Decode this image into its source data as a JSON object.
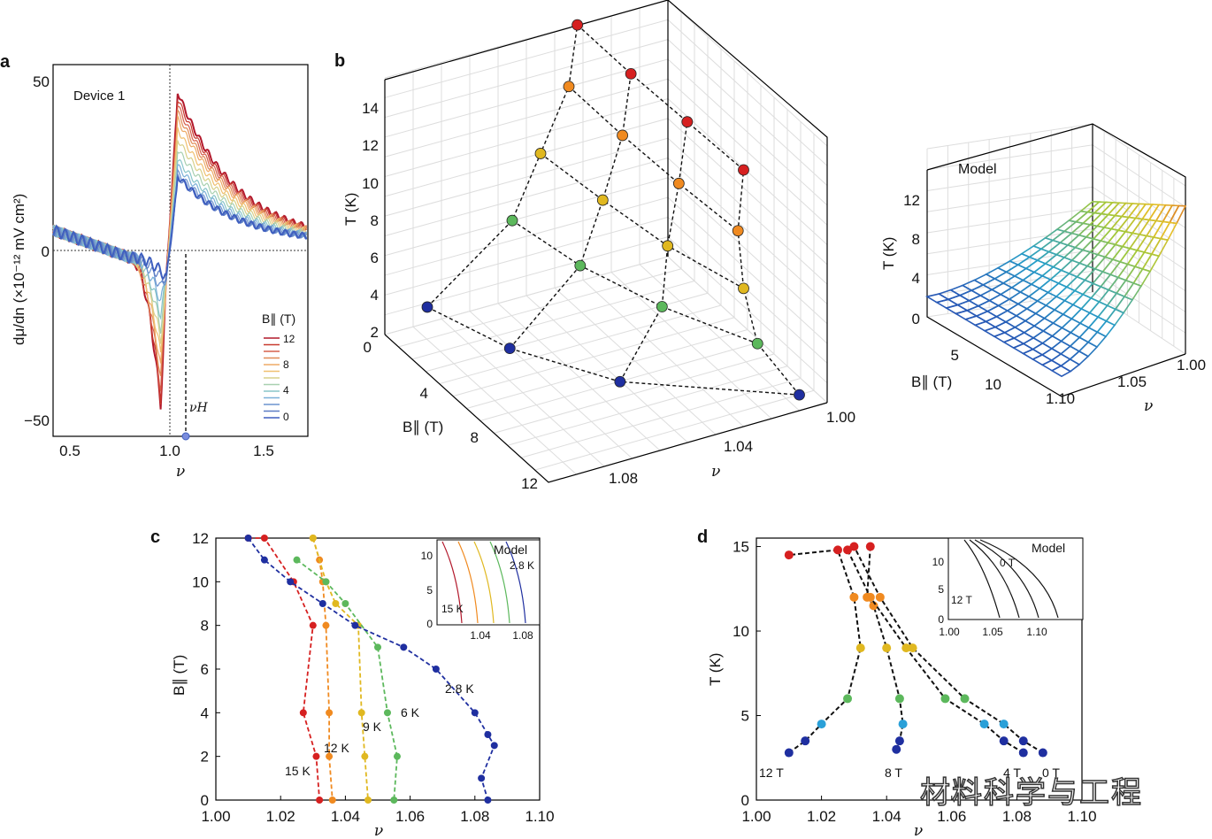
{
  "panels": {
    "a": "a",
    "b": "b",
    "c": "c",
    "d": "d"
  },
  "chart_data": [
    {
      "id": "a",
      "type": "line",
      "annotation": "Device 1",
      "ylabel": "dμ/dn (×10⁻¹² mV cm²)",
      "xlabel": "ν",
      "xlim": [
        0.4,
        1.75
      ],
      "ylim": [
        -55,
        55
      ],
      "xticks": [
        "0.5",
        "1.0",
        "1.5"
      ],
      "yticks": [
        "50",
        "0",
        "−50"
      ],
      "legend_title": "B∥ (T)",
      "legend_entries": [
        "12",
        "8",
        "4",
        "0"
      ],
      "marker_label": "νH",
      "marker_nu": 1.09,
      "series": [
        {
          "field": 12,
          "min": -46,
          "max": 45,
          "color": "#b2182b"
        },
        {
          "field": 11,
          "min": -44,
          "max": 43,
          "color": "#c83a2e"
        },
        {
          "field": 10,
          "min": -41,
          "max": 41,
          "color": "#d6604d"
        },
        {
          "field": 9,
          "min": -38,
          "max": 39,
          "color": "#e08a55"
        },
        {
          "field": 8,
          "min": -35,
          "max": 37,
          "color": "#eeaa66"
        },
        {
          "field": 7,
          "min": -31,
          "max": 34,
          "color": "#f0c070"
        },
        {
          "field": 6,
          "min": -27,
          "max": 31,
          "color": "#d9d08a"
        },
        {
          "field": 5,
          "min": -23,
          "max": 28,
          "color": "#a8d0b0"
        },
        {
          "field": 4,
          "min": -19,
          "max": 25,
          "color": "#88c5c9"
        },
        {
          "field": 3,
          "min": -15,
          "max": 23,
          "color": "#7bb0d8"
        },
        {
          "field": 2,
          "min": -11,
          "max": 21,
          "color": "#6c93cf"
        },
        {
          "field": 1,
          "min": -8,
          "max": 20,
          "color": "#5b7bc4"
        },
        {
          "field": 0,
          "min": -6,
          "max": 20,
          "color": "#3f5fbf"
        }
      ]
    },
    {
      "id": "b",
      "type": "scatter",
      "xlabel": "ν",
      "ylabel": "B∥ (T)",
      "zlabel": "T (K)",
      "xticks": [
        "1.00",
        "1.04",
        "1.08"
      ],
      "yticks": [
        "0",
        "4",
        "8",
        "12"
      ],
      "zticks": [
        "2",
        "4",
        "6",
        "8",
        "10",
        "12",
        "14"
      ],
      "points": [
        {
          "B": 0,
          "nu": 1.085,
          "T": 2.8,
          "color": "#1f2fa0"
        },
        {
          "B": 4,
          "nu": 1.075,
          "T": 2.8,
          "color": "#1f2fa0"
        },
        {
          "B": 8,
          "nu": 1.055,
          "T": 2.8,
          "color": "#1f2fa0"
        },
        {
          "B": 12,
          "nu": 1.01,
          "T": 2.8,
          "color": "#1f2fa0"
        },
        {
          "B": 0,
          "nu": 1.055,
          "T": 6,
          "color": "#5cb85c"
        },
        {
          "B": 4,
          "nu": 1.05,
          "T": 6,
          "color": "#5cb85c"
        },
        {
          "B": 8,
          "nu": 1.04,
          "T": 6,
          "color": "#5cb85c"
        },
        {
          "B": 12,
          "nu": 1.025,
          "T": 6,
          "color": "#5cb85c"
        },
        {
          "B": 0,
          "nu": 1.045,
          "T": 9,
          "color": "#e0b820"
        },
        {
          "B": 4,
          "nu": 1.042,
          "T": 9,
          "color": "#e0b820"
        },
        {
          "B": 8,
          "nu": 1.038,
          "T": 9,
          "color": "#e0b820"
        },
        {
          "B": 12,
          "nu": 1.03,
          "T": 9,
          "color": "#e0b820"
        },
        {
          "B": 0,
          "nu": 1.035,
          "T": 12,
          "color": "#f08a20"
        },
        {
          "B": 4,
          "nu": 1.035,
          "T": 12,
          "color": "#f08a20"
        },
        {
          "B": 8,
          "nu": 1.034,
          "T": 12,
          "color": "#f08a20"
        },
        {
          "B": 12,
          "nu": 1.032,
          "T": 12,
          "color": "#f08a20"
        },
        {
          "B": 0,
          "nu": 1.032,
          "T": 15,
          "color": "#d62020"
        },
        {
          "B": 4,
          "nu": 1.032,
          "T": 15,
          "color": "#d62020"
        },
        {
          "B": 8,
          "nu": 1.031,
          "T": 15,
          "color": "#d62020"
        },
        {
          "B": 12,
          "nu": 1.03,
          "T": 15,
          "color": "#d62020"
        }
      ]
    },
    {
      "id": "b-model",
      "type": "surface",
      "title": "Model",
      "xlabel": "ν",
      "ylabel": "B∥ (T)",
      "zlabel": "T (K)",
      "xticks": [
        "1.00",
        "1.05",
        "1.10"
      ],
      "yticks": [
        "5",
        "10"
      ],
      "zticks": [
        "0",
        "4",
        "8",
        "12"
      ]
    },
    {
      "id": "c",
      "type": "scatter",
      "xlabel": "ν",
      "ylabel": "B∥ (T)",
      "xlim": [
        1.0,
        1.1
      ],
      "ylim": [
        0,
        12
      ],
      "xticks": [
        "1.00",
        "1.02",
        "1.04",
        "1.06",
        "1.08",
        "1.10"
      ],
      "yticks": [
        "0",
        "2",
        "4",
        "6",
        "8",
        "10",
        "12"
      ],
      "series": [
        {
          "name": "15 K",
          "color": "#d62020",
          "x": [
            1.01,
            1.015,
            1.024,
            1.03,
            1.027,
            1.031,
            1.032
          ],
          "y": [
            12,
            12,
            10,
            8,
            4,
            2,
            0
          ]
        },
        {
          "name": "12 K",
          "color": "#f08a20",
          "x": [
            1.03,
            1.032,
            1.033,
            1.034,
            1.035,
            1.035,
            1.036
          ],
          "y": [
            12,
            11,
            10,
            8,
            4,
            2,
            0
          ]
        },
        {
          "name": "9 K",
          "color": "#e0b820",
          "x": [
            1.03,
            1.034,
            1.037,
            1.044,
            1.045,
            1.046,
            1.047
          ],
          "y": [
            12,
            10,
            9,
            8,
            4,
            2,
            0
          ]
        },
        {
          "name": "6 K",
          "color": "#5cb85c",
          "x": [
            1.025,
            1.034,
            1.04,
            1.05,
            1.053,
            1.056,
            1.055
          ],
          "y": [
            11,
            10,
            9,
            7,
            4,
            2,
            0
          ]
        },
        {
          "name": "2.8 K",
          "color": "#1f2fa0",
          "x": [
            1.01,
            1.015,
            1.023,
            1.033,
            1.043,
            1.058,
            1.068,
            1.08,
            1.084,
            1.086,
            1.082,
            1.084
          ],
          "y": [
            12,
            11,
            10,
            9,
            8,
            7,
            6,
            4,
            3,
            2.5,
            1,
            0
          ]
        }
      ],
      "inset": {
        "title": "Model",
        "labels": [
          "2.8 K",
          "15 K"
        ],
        "xticks": [
          "1.04",
          "1.08"
        ],
        "yticks": [
          "0",
          "5",
          "10"
        ]
      }
    },
    {
      "id": "d",
      "type": "scatter",
      "xlabel": "ν",
      "ylabel": "T (K)",
      "xlim": [
        1.0,
        1.1
      ],
      "ylim": [
        0,
        15.5
      ],
      "xticks": [
        "1.00",
        "1.02",
        "1.04",
        "1.06",
        "1.08",
        "1.10"
      ],
      "yticks": [
        "0",
        "5",
        "10",
        "15"
      ],
      "series": [
        {
          "name": "12 T",
          "color": "#333",
          "x": [
            1.01,
            1.015,
            1.02,
            1.028,
            1.032,
            1.03,
            1.025,
            1.01
          ],
          "y": [
            2.8,
            3.5,
            4.5,
            6,
            9,
            12,
            14.8,
            14.5
          ]
        },
        {
          "name": "8 T",
          "color": "#333",
          "x": [
            1.043,
            1.044,
            1.045,
            1.044,
            1.04,
            1.036,
            1.034,
            1.035
          ],
          "y": [
            3,
            3.5,
            4.5,
            6,
            9,
            11.5,
            12,
            15
          ]
        },
        {
          "name": "4 T",
          "color": "#333",
          "x": [
            1.082,
            1.076,
            1.07,
            1.058,
            1.046,
            1.035,
            1.028
          ],
          "y": [
            2.8,
            3.5,
            4.5,
            6,
            9,
            12,
            14.8
          ]
        },
        {
          "name": "0 T",
          "color": "#333",
          "x": [
            1.088,
            1.082,
            1.076,
            1.064,
            1.048,
            1.038,
            1.03
          ],
          "y": [
            2.8,
            3.5,
            4.5,
            6,
            9,
            12,
            15
          ]
        }
      ],
      "inset": {
        "title": "Model",
        "labels": [
          "0 T",
          "12 T"
        ],
        "xticks": [
          "1.00",
          "1.05",
          "1.10"
        ],
        "yticks": [
          "0",
          "5",
          "10"
        ]
      }
    }
  ],
  "watermark": "材料科学与工程"
}
